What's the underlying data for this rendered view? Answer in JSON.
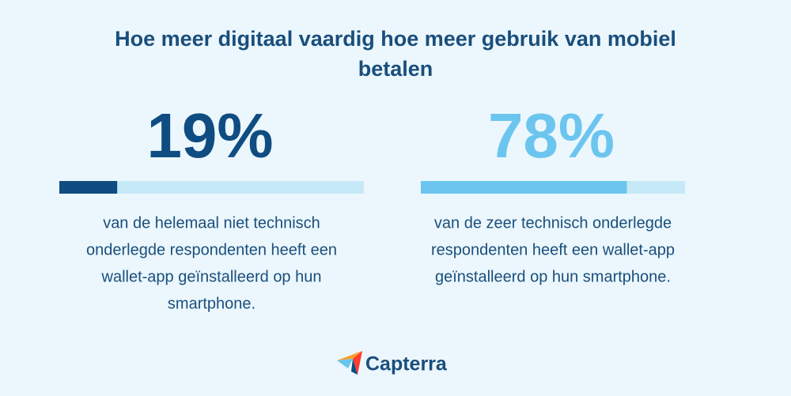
{
  "chart_data": {
    "type": "progress",
    "title": [
      "Hoe meer digitaal vaardig hoe meer gebruik van mobiel",
      "betalen"
    ],
    "values": [
      19,
      78
    ],
    "value_labels": [
      "19%",
      "78%"
    ],
    "colors": [
      "#0f4c81",
      "#6cc5ee"
    ],
    "track_color": "#c6e9f8",
    "xlim": [
      0,
      100
    ],
    "descriptions": [
      [
        "van de helemaal niet technisch",
        "onderlegde respondenten heeft een",
        "wallet-app geïnstalleerd op hun",
        "smartphone."
      ],
      [
        "van de zeer technisch onderlegde",
        "respondenten heeft een wallet-app",
        "geïnstalleerd op hun smartphone."
      ]
    ],
    "logo_text": "Capterra"
  }
}
